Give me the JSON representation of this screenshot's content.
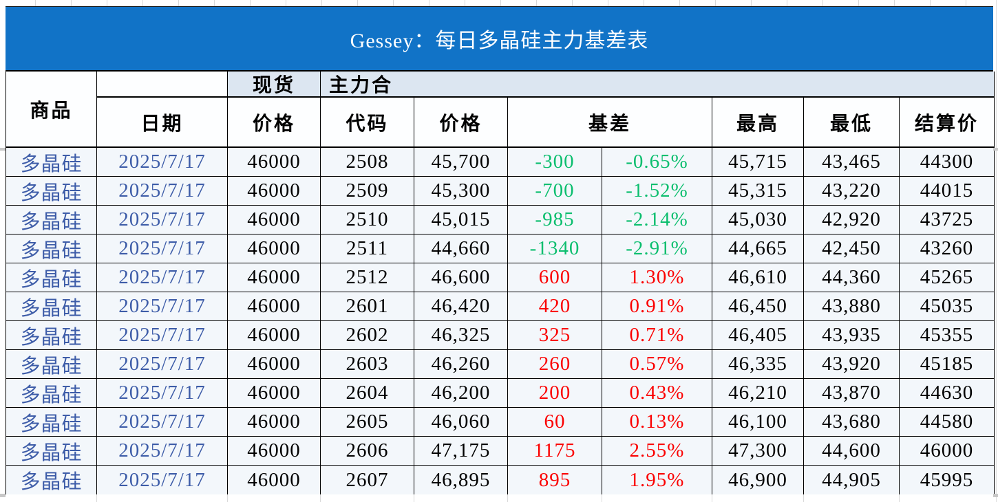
{
  "title": "Gessey：每日多晶硅主力基差表",
  "header": {
    "commodity": "商品",
    "date": "日期",
    "spot_group": "现货",
    "main_group": "主力合",
    "spot_price": "价格",
    "code": "代码",
    "price": "价格",
    "basis": "基差",
    "high": "最高",
    "low": "最低",
    "settlement": "结算价"
  },
  "colors": {
    "title_bar_blue": "#1173c7",
    "header_band_blue": "#dce6f1",
    "cell_background": "#f3f7fb",
    "link_text_blue": "#3d5ca8",
    "negative_green": "#0bbe6e",
    "positive_red": "#fb0000"
  },
  "table": {
    "rows": [
      {
        "commodity": "多晶硅",
        "date": "2025/7/17",
        "spot": "46000",
        "code": "2508",
        "price": "45,700",
        "basis": "-300",
        "basis_pct": "-0.65%",
        "high": "45,715",
        "low": "43,465",
        "settle": "44300"
      },
      {
        "commodity": "多晶硅",
        "date": "2025/7/17",
        "spot": "46000",
        "code": "2509",
        "price": "45,300",
        "basis": "-700",
        "basis_pct": "-1.52%",
        "high": "45,315",
        "low": "43,220",
        "settle": "44015"
      },
      {
        "commodity": "多晶硅",
        "date": "2025/7/17",
        "spot": "46000",
        "code": "2510",
        "price": "45,015",
        "basis": "-985",
        "basis_pct": "-2.14%",
        "high": "45,030",
        "low": "42,920",
        "settle": "43725"
      },
      {
        "commodity": "多晶硅",
        "date": "2025/7/17",
        "spot": "46000",
        "code": "2511",
        "price": "44,660",
        "basis": "-1340",
        "basis_pct": "-2.91%",
        "high": "44,665",
        "low": "42,450",
        "settle": "43260"
      },
      {
        "commodity": "多晶硅",
        "date": "2025/7/17",
        "spot": "46000",
        "code": "2512",
        "price": "46,600",
        "basis": "600",
        "basis_pct": "1.30%",
        "high": "46,610",
        "low": "44,360",
        "settle": "45265"
      },
      {
        "commodity": "多晶硅",
        "date": "2025/7/17",
        "spot": "46000",
        "code": "2601",
        "price": "46,420",
        "basis": "420",
        "basis_pct": "0.91%",
        "high": "46,450",
        "low": "43,880",
        "settle": "45035"
      },
      {
        "commodity": "多晶硅",
        "date": "2025/7/17",
        "spot": "46000",
        "code": "2602",
        "price": "46,325",
        "basis": "325",
        "basis_pct": "0.71%",
        "high": "46,405",
        "low": "43,935",
        "settle": "45355"
      },
      {
        "commodity": "多晶硅",
        "date": "2025/7/17",
        "spot": "46000",
        "code": "2603",
        "price": "46,260",
        "basis": "260",
        "basis_pct": "0.57%",
        "high": "46,335",
        "low": "43,920",
        "settle": "45185"
      },
      {
        "commodity": "多晶硅",
        "date": "2025/7/17",
        "spot": "46000",
        "code": "2604",
        "price": "46,200",
        "basis": "200",
        "basis_pct": "0.43%",
        "high": "46,210",
        "low": "43,870",
        "settle": "44630"
      },
      {
        "commodity": "多晶硅",
        "date": "2025/7/17",
        "spot": "46000",
        "code": "2605",
        "price": "46,060",
        "basis": "60",
        "basis_pct": "0.13%",
        "high": "46,100",
        "low": "43,680",
        "settle": "44580"
      },
      {
        "commodity": "多晶硅",
        "date": "2025/7/17",
        "spot": "46000",
        "code": "2606",
        "price": "47,175",
        "basis": "1175",
        "basis_pct": "2.55%",
        "high": "47,300",
        "low": "44,600",
        "settle": "46000"
      },
      {
        "commodity": "多晶硅",
        "date": "2025/7/17",
        "spot": "46000",
        "code": "2607",
        "price": "46,895",
        "basis": "895",
        "basis_pct": "1.95%",
        "high": "46,900",
        "low": "44,905",
        "settle": "45995"
      }
    ]
  }
}
